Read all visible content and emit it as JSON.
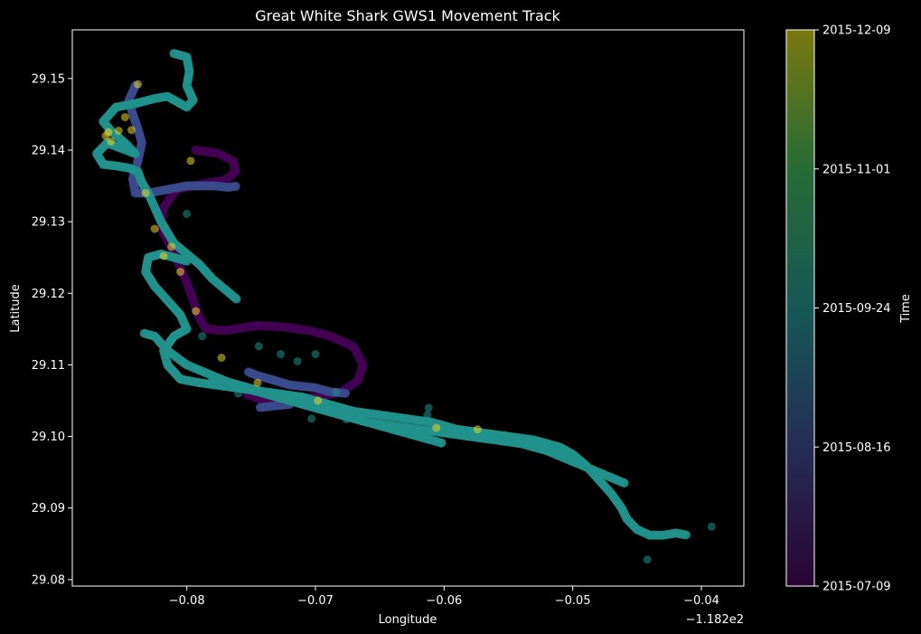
{
  "chart_data": {
    "type": "scatter",
    "title": "Great White Shark GWS1 Movement Track",
    "xlabel": "Longitude",
    "ylabel": "Latitude",
    "x_offset_label": "−1.182e2",
    "xlim": [
      -0.0889,
      -0.0367
    ],
    "ylim": [
      29.0791,
      29.1568
    ],
    "x_ticks": [
      -0.08,
      -0.07,
      -0.06,
      -0.05,
      -0.04
    ],
    "x_tick_labels": [
      "−0.08",
      "−0.07",
      "−0.06",
      "−0.05",
      "−0.04"
    ],
    "y_ticks": [
      29.08,
      29.09,
      29.1,
      29.11,
      29.12,
      29.13,
      29.14,
      29.15
    ],
    "y_tick_labels": [
      "29.08",
      "29.09",
      "29.10",
      "29.11",
      "29.12",
      "29.13",
      "29.14",
      "29.15"
    ],
    "grid": false,
    "colorbar": {
      "label": "Time",
      "colormap": "viridis",
      "tick_labels": [
        "2015-07-09",
        "2015-08-16",
        "2015-09-24",
        "2015-11-01",
        "2015-12-09"
      ]
    },
    "colors": {
      "background": "#000000",
      "purple": "#440154",
      "indigo": "#3b4a8c",
      "teal": "#21918c",
      "green": "#3d9a4a",
      "yellow": "#e8d62a"
    },
    "series": [
      {
        "color": "#440154",
        "x": [
          -0.0793,
          -0.0775,
          -0.0764,
          -0.0762,
          -0.077,
          -0.079,
          -0.0808,
          -0.0818,
          -0.082,
          -0.0812,
          -0.0806,
          -0.08,
          -0.0795,
          -0.079,
          -0.0785,
          -0.077,
          -0.0745,
          -0.0725,
          -0.0705,
          -0.0688,
          -0.067,
          -0.0663,
          -0.0667,
          -0.068,
          -0.07,
          -0.072,
          -0.074,
          -0.0755
        ],
        "y": [
          29.14,
          29.1395,
          29.1385,
          29.137,
          29.1358,
          29.1352,
          29.1345,
          29.132,
          29.129,
          29.1265,
          29.124,
          29.1215,
          29.119,
          29.1165,
          29.115,
          29.1148,
          29.1155,
          29.1153,
          29.1148,
          29.114,
          29.1125,
          29.11,
          29.1078,
          29.1062,
          29.1055,
          29.1052,
          29.105,
          29.106
        ]
      },
      {
        "color": "#3b4a8c",
        "x": [
          -0.084,
          -0.0845,
          -0.0842,
          -0.0838,
          -0.0835,
          -0.0838,
          -0.0842,
          -0.084,
          -0.083,
          -0.0815,
          -0.08,
          -0.0785,
          -0.0778,
          -0.0768,
          -0.076,
          -0.0752,
          -0.0745,
          -0.0735,
          -0.072,
          -0.07,
          -0.0688,
          -0.0675,
          -0.072,
          -0.0745
        ],
        "y": [
          29.149,
          29.147,
          29.145,
          29.143,
          29.141,
          29.1385,
          29.136,
          29.134,
          29.134,
          29.1345,
          29.135,
          29.135,
          29.135,
          29.1348,
          29.135,
          29.109,
          29.1085,
          29.108,
          29.1072,
          29.1068,
          29.1062,
          29.106,
          29.1045,
          29.104
        ]
      },
      {
        "color": "#21918c",
        "x": [
          -0.081,
          -0.08,
          -0.0798,
          -0.08,
          -0.0795,
          -0.08,
          -0.0808,
          -0.0815,
          -0.0825,
          -0.084,
          -0.0855,
          -0.0865,
          -0.0858,
          -0.0848,
          -0.084,
          -0.0862,
          -0.087,
          -0.0865,
          -0.0855,
          -0.0845,
          -0.0838,
          -0.0835,
          -0.083,
          -0.0825,
          -0.082,
          -0.0815,
          -0.081,
          -0.08,
          -0.079,
          -0.078,
          -0.077,
          -0.076,
          -0.08,
          -0.081,
          -0.082,
          -0.083,
          -0.0832,
          -0.0825,
          -0.0815,
          -0.0805,
          -0.08,
          -0.081,
          -0.0818,
          -0.0815,
          -0.0805,
          -0.079,
          -0.077,
          -0.075,
          -0.073,
          -0.071,
          -0.069,
          -0.067,
          -0.065,
          -0.063,
          -0.061,
          -0.059,
          -0.057,
          -0.055,
          -0.053,
          -0.051,
          -0.05,
          -0.049,
          -0.048,
          -0.047,
          -0.0462,
          -0.0458,
          -0.045,
          -0.044,
          -0.043,
          -0.042,
          -0.041,
          -0.046,
          -0.048,
          -0.05,
          -0.052,
          -0.054,
          -0.056,
          -0.058,
          -0.06,
          -0.062,
          -0.064,
          -0.066,
          -0.068,
          -0.07,
          -0.072,
          -0.074,
          -0.076,
          -0.078,
          -0.08,
          -0.0815,
          -0.0825,
          -0.0835,
          -0.078,
          -0.076,
          -0.074,
          -0.072,
          -0.07,
          -0.068,
          -0.066,
          -0.064,
          -0.062,
          -0.06
        ],
        "y": [
          29.1535,
          29.153,
          29.151,
          29.149,
          29.147,
          29.146,
          29.1468,
          29.1475,
          29.1472,
          29.1465,
          29.146,
          29.144,
          29.1425,
          29.141,
          29.1395,
          29.141,
          29.1395,
          29.138,
          29.1378,
          29.1375,
          29.137,
          29.1355,
          29.134,
          29.132,
          29.13,
          29.1285,
          29.127,
          29.1255,
          29.124,
          29.122,
          29.1205,
          29.119,
          29.1245,
          29.125,
          29.1255,
          29.125,
          29.123,
          29.121,
          29.119,
          29.117,
          29.115,
          29.114,
          29.112,
          29.11,
          29.108,
          29.1075,
          29.107,
          29.1065,
          29.106,
          29.1055,
          29.1045,
          29.1035,
          29.103,
          29.1025,
          29.102,
          29.101,
          29.1005,
          29.1,
          29.0995,
          29.0985,
          29.0975,
          29.096,
          29.094,
          29.092,
          29.09,
          29.0885,
          29.087,
          29.0862,
          29.0862,
          29.0865,
          29.0862,
          29.0935,
          29.095,
          29.0965,
          29.098,
          29.099,
          29.0995,
          29.1,
          29.1005,
          29.101,
          29.1015,
          29.102,
          29.103,
          29.104,
          29.105,
          29.106,
          29.107,
          29.1085,
          29.11,
          29.112,
          29.114,
          29.1145,
          29.1082,
          29.1072,
          29.1062,
          29.105,
          29.104,
          29.103,
          29.102,
          29.101,
          29.1,
          29.099
        ]
      },
      {
        "color": "#21918c",
        "scatter": true,
        "x": [
          -0.08,
          -0.0744,
          -0.0727,
          -0.0714,
          -0.07,
          -0.0703,
          -0.0684,
          -0.0676,
          -0.0656,
          -0.0613,
          -0.0612,
          -0.0442,
          -0.0392,
          -0.0788,
          -0.076
        ],
        "y": [
          29.1311,
          29.1126,
          29.1115,
          29.1105,
          29.1115,
          29.1025,
          29.1062,
          29.1024,
          29.1032,
          29.103,
          29.104,
          29.0828,
          29.0874,
          29.114,
          29.106
        ]
      },
      {
        "color": "#e8d62a",
        "scatter": true,
        "x": [
          -0.0863,
          -0.0861,
          -0.0859,
          -0.0853,
          -0.0848,
          -0.0843,
          -0.0838,
          -0.0832,
          -0.0825,
          -0.0818,
          -0.0812,
          -0.0805,
          -0.0797,
          -0.0793,
          -0.0773,
          -0.0745,
          -0.0698,
          -0.0606,
          -0.0574
        ],
        "y": [
          29.142,
          29.1425,
          29.1412,
          29.1427,
          29.1446,
          29.1428,
          29.1492,
          29.134,
          29.129,
          29.1252,
          29.1265,
          29.123,
          29.1385,
          29.1175,
          29.111,
          29.1075,
          29.105,
          29.1012,
          29.101
        ]
      }
    ]
  }
}
